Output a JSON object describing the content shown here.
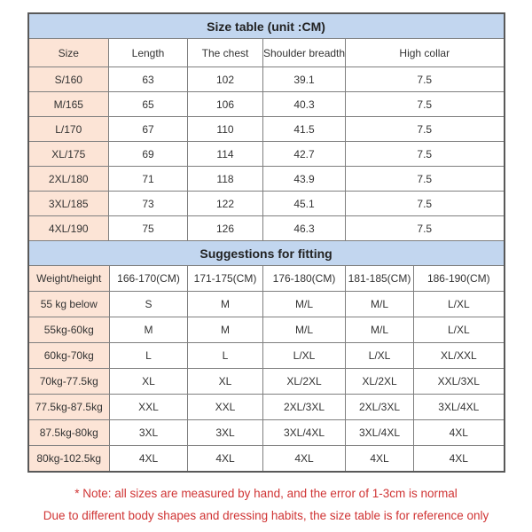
{
  "chart_data": [
    {
      "type": "table",
      "title": "Size table (unit :CM)",
      "columns": [
        "Size",
        "Length",
        "The chest",
        "Shoulder breadth",
        "High collar"
      ],
      "rows": [
        [
          "S/160",
          "63",
          "102",
          "39.1",
          "7.5"
        ],
        [
          "M/165",
          "65",
          "106",
          "40.3",
          "7.5"
        ],
        [
          "L/170",
          "67",
          "110",
          "41.5",
          "7.5"
        ],
        [
          "XL/175",
          "69",
          "114",
          "42.7",
          "7.5"
        ],
        [
          "2XL/180",
          "71",
          "118",
          "43.9",
          "7.5"
        ],
        [
          "3XL/185",
          "73",
          "122",
          "45.1",
          "7.5"
        ],
        [
          "4XL/190",
          "75",
          "126",
          "46.3",
          "7.5"
        ]
      ]
    },
    {
      "type": "table",
      "title": "Suggestions for fitting",
      "columns": [
        "Weight/height",
        "166-170(CM)",
        "171-175(CM)",
        "176-180(CM)",
        "181-185(CM)",
        "186-190(CM)"
      ],
      "rows": [
        [
          "55 kg below",
          "S",
          "M",
          "M/L",
          "M/L",
          "L/XL"
        ],
        [
          "55kg-60kg",
          "M",
          "M",
          "M/L",
          "M/L",
          "L/XL"
        ],
        [
          "60kg-70kg",
          "L",
          "L",
          "L/XL",
          "L/XL",
          "XL/XXL"
        ],
        [
          "70kg-77.5kg",
          "XL",
          "XL",
          "XL/2XL",
          "XL/2XL",
          "XXL/3XL"
        ],
        [
          "77.5kg-87.5kg",
          "XXL",
          "XXL",
          "2XL/3XL",
          "2XL/3XL",
          "3XL/4XL"
        ],
        [
          "87.5kg-80kg",
          "3XL",
          "3XL",
          "3XL/4XL",
          "3XL/4XL",
          "4XL"
        ],
        [
          "80kg-102.5kg",
          "4XL",
          "4XL",
          "4XL",
          "4XL",
          "4XL"
        ]
      ]
    }
  ],
  "notes": {
    "line1": "* Note: all sizes are measured by hand, and the error of 1-3cm is normal",
    "line2": "Due to different body shapes and dressing habits, the size table is for reference only"
  },
  "colors": {
    "title_band_blue": "#c2d6ef",
    "label_column_peach": "#fce4d6",
    "border_gray": "#7f7f7f",
    "outer_border": "#595959",
    "note_red": "#d03434",
    "text": "#333333"
  }
}
